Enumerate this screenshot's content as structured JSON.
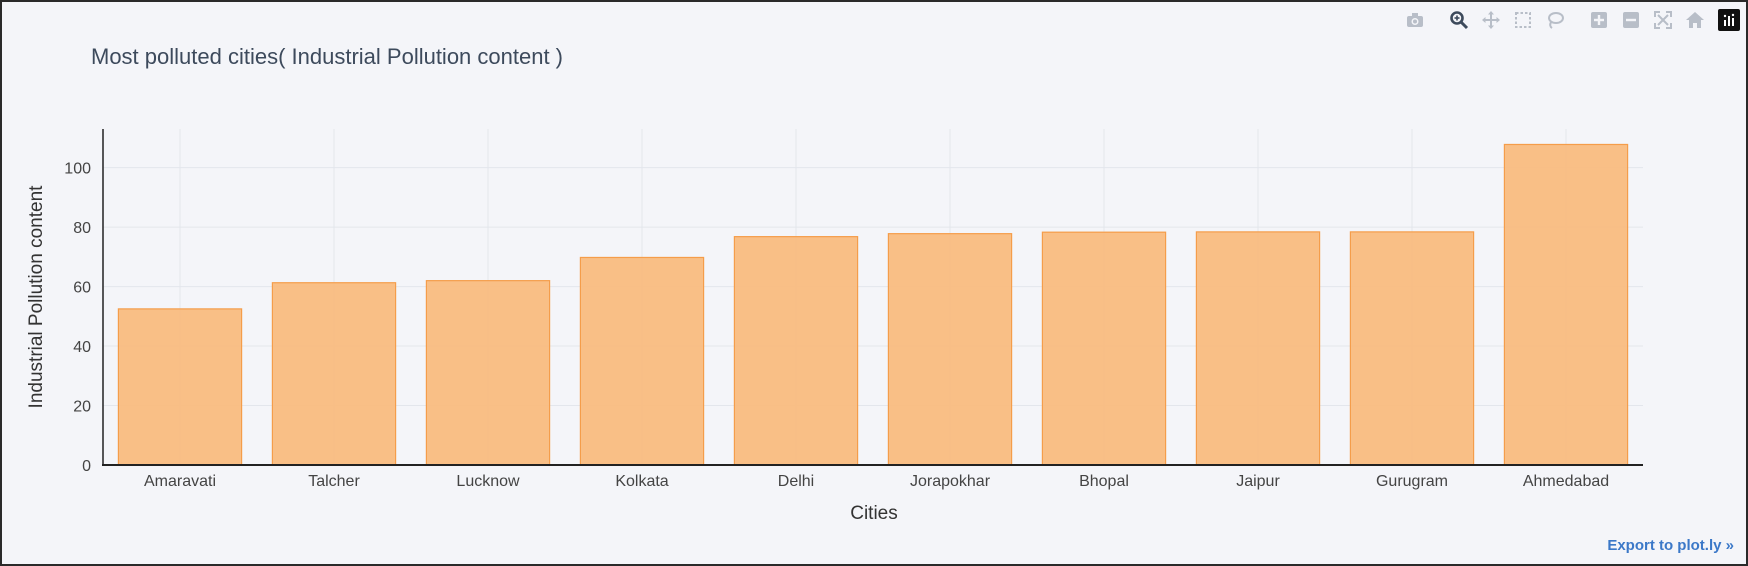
{
  "chart_data": {
    "type": "bar",
    "title": "Most polluted cities( Industrial Pollution content )",
    "xlabel": "Cities",
    "ylabel": "Industrial Pollution content",
    "categories": [
      "Amaravati",
      "Talcher",
      "Lucknow",
      "Kolkata",
      "Delhi",
      "Jorapokhar",
      "Bhopal",
      "Jaipur",
      "Gurugram",
      "Ahmedabad"
    ],
    "values": [
      52.5,
      61.3,
      62.0,
      69.8,
      76.8,
      77.8,
      78.3,
      78.4,
      78.4,
      107.8
    ],
    "ylim": [
      0,
      113
    ],
    "yticks": [
      0,
      20,
      40,
      60,
      80,
      100
    ],
    "grid": true,
    "bar_fill": "#f9bc80",
    "bar_edge": "#f59d4a"
  },
  "export_link": "Export to plot.ly »",
  "modebar": {
    "icons": [
      "camera-icon",
      "zoom-icon",
      "pan-icon",
      "box-select-icon",
      "lasso-icon",
      "zoom-in-icon",
      "zoom-out-icon",
      "autoscale-icon",
      "home-icon",
      "plotly-logo-icon"
    ]
  }
}
